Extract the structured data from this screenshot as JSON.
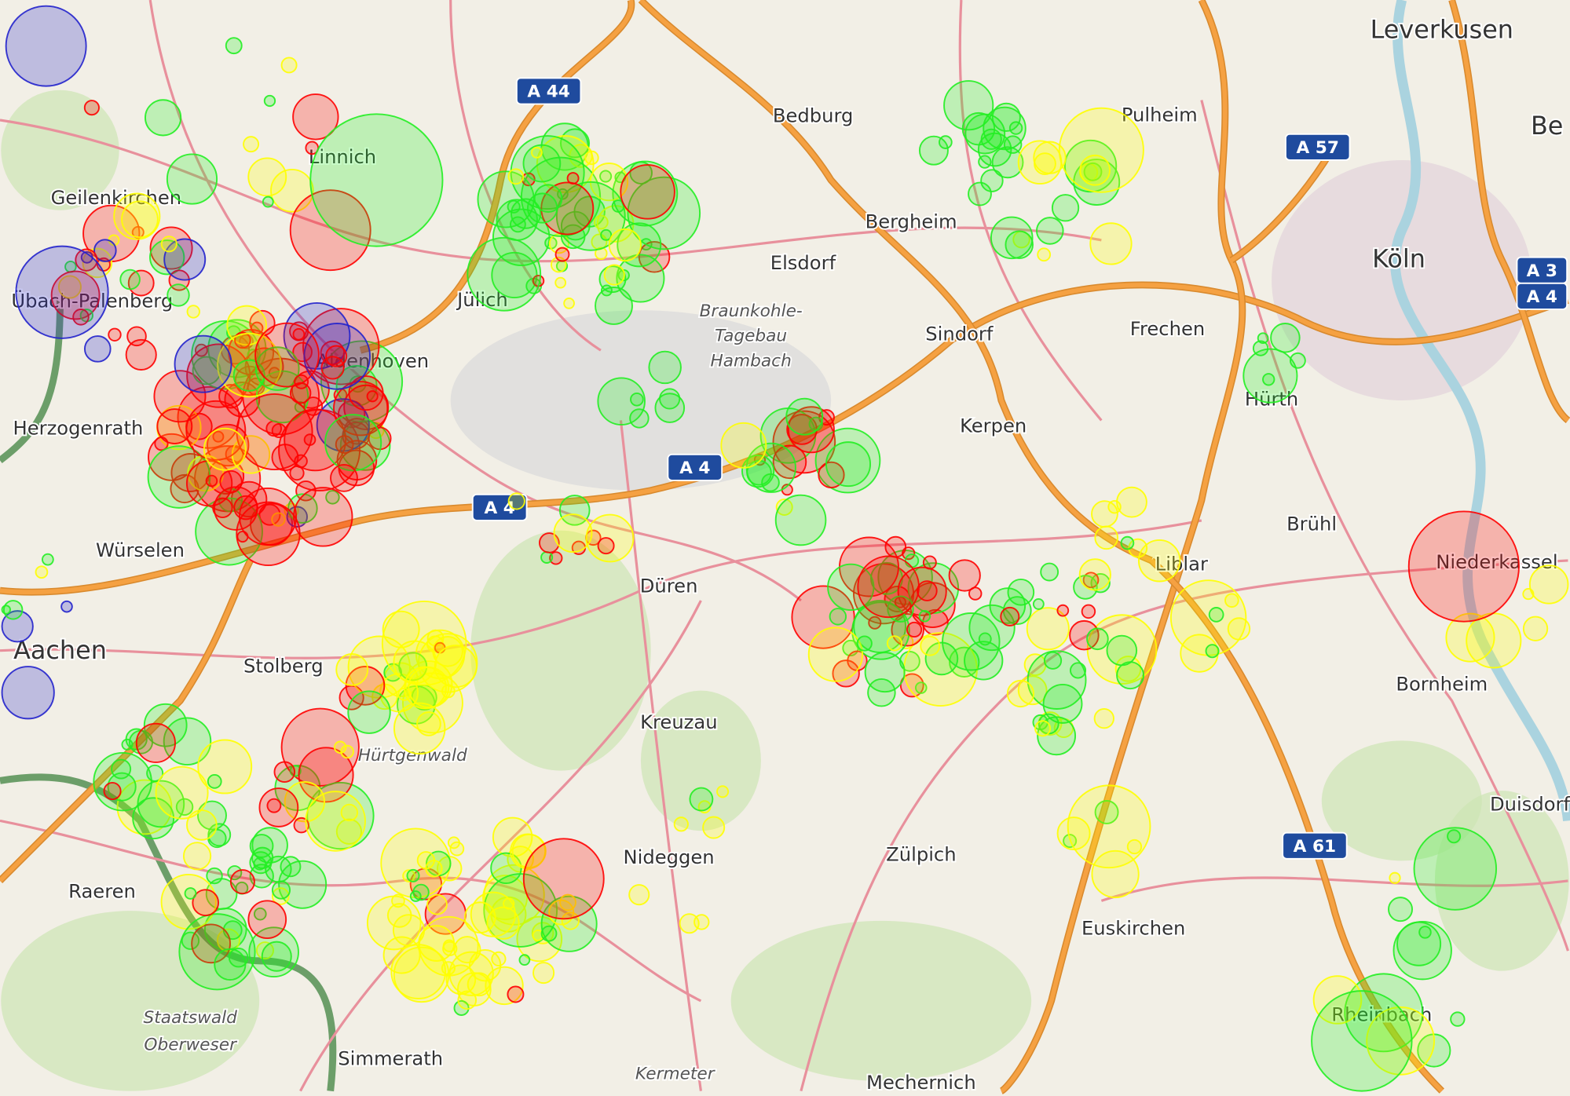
{
  "map": {
    "places": [
      {
        "name": "Leverkusen",
        "cls": "big"
      },
      {
        "name": "Bedburg",
        "cls": ""
      },
      {
        "name": "Pulheim",
        "cls": ""
      },
      {
        "name": "Be",
        "cls": "big"
      },
      {
        "name": "Linnich",
        "cls": ""
      },
      {
        "name": "Geilenkirchen",
        "cls": ""
      },
      {
        "name": "Bergheim",
        "cls": ""
      },
      {
        "name": "Köln",
        "cls": "big"
      },
      {
        "name": "Elsdorf",
        "cls": ""
      },
      {
        "name": "Übach-Palenberg",
        "cls": ""
      },
      {
        "name": "Jülich",
        "cls": ""
      },
      {
        "name": "Braunkohle-",
        "cls": "it"
      },
      {
        "name": "Tagebau",
        "cls": "it"
      },
      {
        "name": "Hambach",
        "cls": "it"
      },
      {
        "name": "Sindorf",
        "cls": ""
      },
      {
        "name": "Frechen",
        "cls": ""
      },
      {
        "name": "Aldenhoven",
        "cls": ""
      },
      {
        "name": "Hürth",
        "cls": ""
      },
      {
        "name": "Herzogenrath",
        "cls": ""
      },
      {
        "name": "Kerpen",
        "cls": ""
      },
      {
        "name": "Brühl",
        "cls": ""
      },
      {
        "name": "Würselen",
        "cls": ""
      },
      {
        "name": "Düren",
        "cls": ""
      },
      {
        "name": "Liblar",
        "cls": ""
      },
      {
        "name": "Niederkassel",
        "cls": ""
      },
      {
        "name": "Aachen",
        "cls": "big"
      },
      {
        "name": "Stolberg",
        "cls": ""
      },
      {
        "name": "Bornheim",
        "cls": ""
      },
      {
        "name": "Kreuzau",
        "cls": ""
      },
      {
        "name": "Hürtgenwald",
        "cls": "it"
      },
      {
        "name": "Duisdorf",
        "cls": ""
      },
      {
        "name": "Nideggen",
        "cls": ""
      },
      {
        "name": "Zülpich",
        "cls": ""
      },
      {
        "name": "Raeren",
        "cls": ""
      },
      {
        "name": "Euskirchen",
        "cls": ""
      },
      {
        "name": "Staatswald",
        "cls": "it"
      },
      {
        "name": "Oberweser",
        "cls": "it"
      },
      {
        "name": "Simmerath",
        "cls": ""
      },
      {
        "name": "Rheinbach",
        "cls": ""
      },
      {
        "name": "Kermeter",
        "cls": "it"
      },
      {
        "name": "Mechernich",
        "cls": ""
      }
    ],
    "shields": [
      "A 44",
      "A 57",
      "A 3",
      "A 4",
      "A 4",
      "A 4",
      "A 61"
    ],
    "marker_colors": {
      "red": "#ff0000",
      "yellow": "#ffff00",
      "green": "#22ee22",
      "blue": "#2222cc"
    },
    "colors": {
      "land": "#f2efe6",
      "motorway": "#f5a142",
      "road": "#e8909c",
      "forest": "#cde6b4",
      "shield": "#1f4b9e"
    }
  }
}
